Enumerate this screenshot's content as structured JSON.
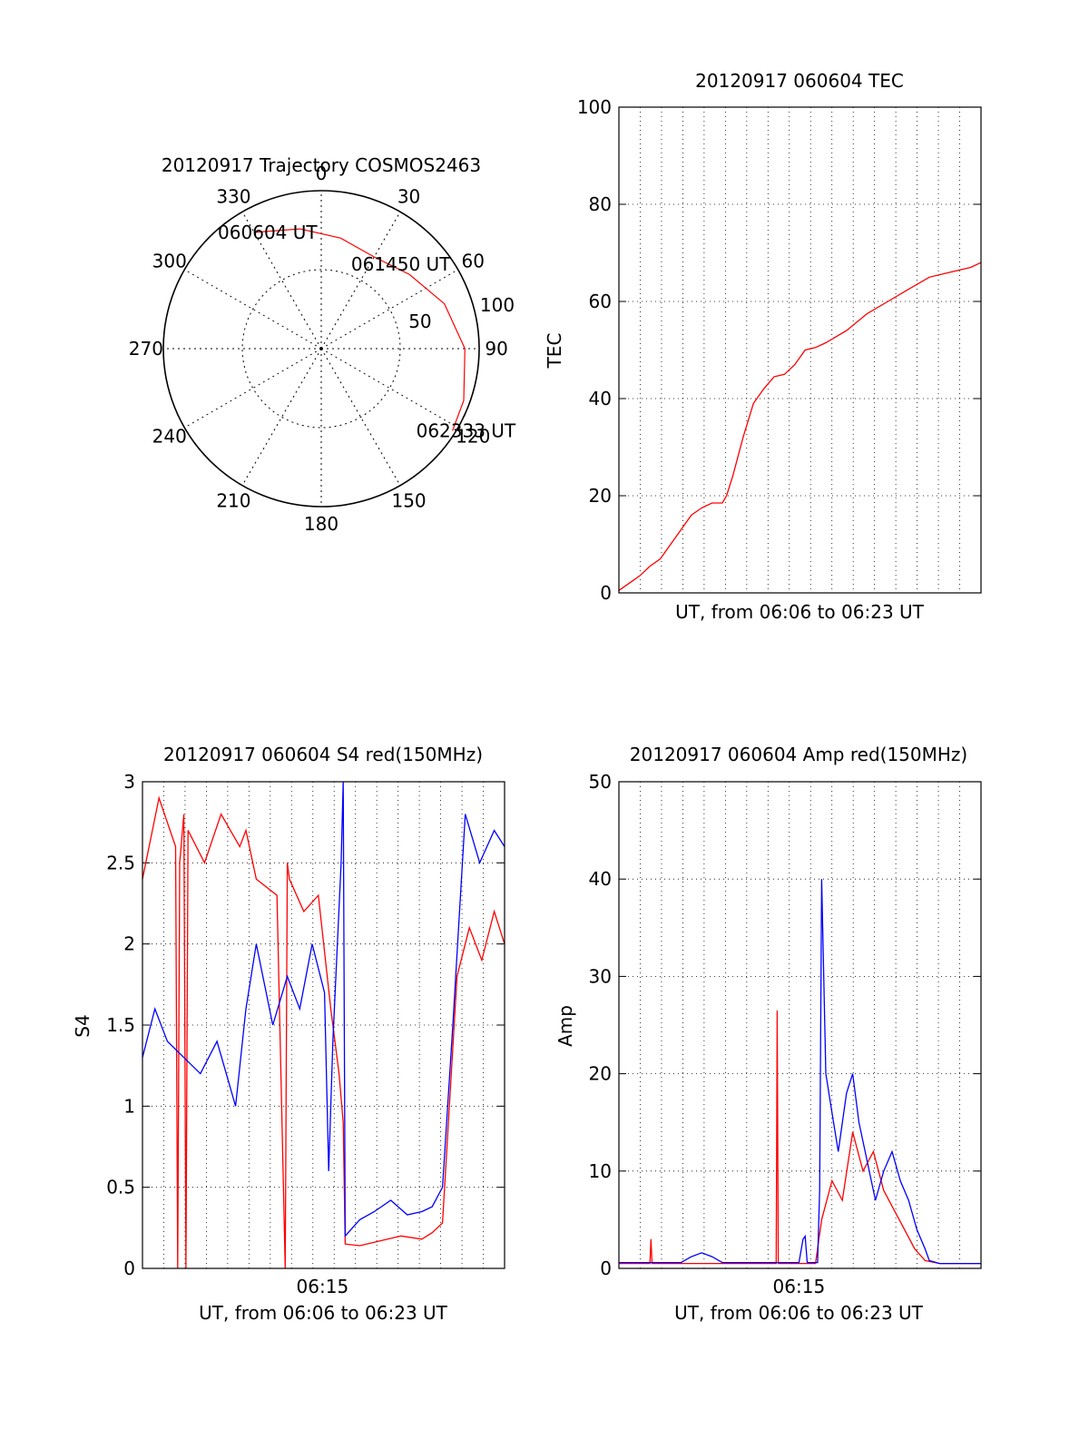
{
  "chart_data": [
    {
      "type": "polar",
      "title": "20120917 Trajectory COSMOS2463",
      "azimuth_labels": [
        "0",
        "30",
        "60",
        "90",
        "120",
        "150",
        "180",
        "210",
        "240",
        "270",
        "300",
        "330"
      ],
      "radial_labels": [
        "50",
        "100"
      ],
      "radial_ticks": [
        50,
        100
      ],
      "grid": true,
      "series": [
        {
          "color": "#ff0000",
          "points": [
            {
              "az": 330,
              "r": 85
            },
            {
              "az": 350,
              "r": 77
            },
            {
              "az": 10,
              "r": 71
            },
            {
              "az": 30,
              "r": 67
            },
            {
              "az": 50,
              "r": 73
            },
            {
              "az": 70,
              "r": 83
            },
            {
              "az": 90,
              "r": 91
            },
            {
              "az": 110,
              "r": 96
            },
            {
              "az": 122,
              "r": 98
            }
          ]
        }
      ],
      "annotations": [
        {
          "text": "060604 UT",
          "az": 330,
          "r": 85
        },
        {
          "text": "061450 UT",
          "az": 38,
          "r": 68
        },
        {
          "text": "062333 UT",
          "az": 122,
          "r": 98
        }
      ]
    },
    {
      "type": "line",
      "title": "20120917 060604 TEC",
      "xlabel": "UT, from 06:06 to 06:23 UT",
      "ylabel": "TEC",
      "xlim": [
        0,
        17.5
      ],
      "ylim": [
        0,
        100
      ],
      "yticks": [
        "0",
        "20",
        "40",
        "60",
        "80",
        "100"
      ],
      "grid": true,
      "series": [
        {
          "color": "#ff0000",
          "x": [
            0,
            0.5,
            1.0,
            1.5,
            2.0,
            2.5,
            3.0,
            3.5,
            4.0,
            4.5,
            5.0,
            5.2,
            5.5,
            6.0,
            6.5,
            7.0,
            7.5,
            8.0,
            8.5,
            9.0,
            9.5,
            10.0,
            11.0,
            12.0,
            13.0,
            14.0,
            15.0,
            16.0,
            17.0,
            17.5
          ],
          "y": [
            0.5,
            2,
            3.5,
            5.5,
            7,
            10,
            13,
            16,
            17.5,
            18.5,
            18.5,
            20,
            24,
            32,
            39,
            42,
            44.5,
            45,
            47,
            50,
            50.5,
            51.5,
            54,
            57.5,
            60,
            62.5,
            65,
            66,
            67,
            68
          ]
        }
      ]
    },
    {
      "type": "line",
      "title": "20120917 060604 S4 red(150MHz)",
      "xlabel": "UT, from 06:06 to 06:23 UT",
      "ylabel": "S4",
      "xlim": [
        0,
        17.5
      ],
      "ylim": [
        0,
        3
      ],
      "yticks": [
        "0",
        "0.5",
        "1",
        "1.5",
        "2",
        "2.5",
        "3"
      ],
      "xticks": [
        {
          "x": 8.7,
          "label": "06:15"
        }
      ],
      "grid": true,
      "series": [
        {
          "color": "#ff0000",
          "x": [
            0,
            0.8,
            1.6,
            1.7,
            1.8,
            2.0,
            2.1,
            2.2,
            3.0,
            3.8,
            4.7,
            5.0,
            5.5,
            6.5,
            6.9,
            7.0,
            7.1,
            7.8,
            8.5,
            9.1,
            9.5,
            9.7,
            9.8,
            10.5,
            11.5,
            12.5,
            13.5,
            14.0,
            14.5,
            15.2,
            15.8,
            16.4,
            17.0,
            17.5
          ],
          "y": [
            2.4,
            2.9,
            2.6,
            0,
            2.5,
            2.8,
            0,
            2.7,
            2.5,
            2.8,
            2.6,
            2.7,
            2.4,
            2.3,
            0,
            2.5,
            2.4,
            2.2,
            2.3,
            1.6,
            1.2,
            0.9,
            0.15,
            0.14,
            0.17,
            0.2,
            0.18,
            0.22,
            0.28,
            1.8,
            2.1,
            1.9,
            2.2,
            2.0
          ]
        },
        {
          "color": "#0000ff",
          "x": [
            0,
            0.6,
            1.2,
            2.0,
            2.8,
            3.6,
            4.5,
            5.0,
            5.5,
            6.3,
            7.0,
            7.6,
            8.2,
            8.8,
            9.0,
            9.2,
            9.6,
            9.7,
            9.8,
            10.5,
            11.2,
            12.0,
            12.8,
            13.5,
            14.0,
            14.5,
            15.0,
            15.6,
            16.3,
            17.0,
            17.5
          ],
          "y": [
            1.3,
            1.6,
            1.4,
            1.3,
            1.2,
            1.4,
            1.0,
            1.6,
            2.0,
            1.5,
            1.8,
            1.6,
            2.0,
            1.7,
            0.6,
            1.4,
            2.5,
            3.0,
            0.2,
            0.3,
            0.35,
            0.42,
            0.33,
            0.35,
            0.38,
            0.5,
            1.5,
            2.8,
            2.5,
            2.7,
            2.6
          ]
        }
      ]
    },
    {
      "type": "line",
      "title": "20120917 060604 Amp red(150MHz)",
      "xlabel": "UT, from 06:06 to 06:23 UT",
      "ylabel": "Amp",
      "xlim": [
        0,
        17.5
      ],
      "ylim": [
        0,
        50
      ],
      "yticks": [
        "0",
        "10",
        "20",
        "30",
        "40",
        "50"
      ],
      "xticks": [
        {
          "x": 8.7,
          "label": "06:15"
        }
      ],
      "grid": true,
      "series": [
        {
          "color": "#ff0000",
          "x": [
            0,
            1.5,
            1.55,
            1.6,
            7.6,
            7.65,
            7.7,
            9.5,
            9.8,
            10.3,
            10.8,
            11.3,
            11.8,
            12.3,
            12.8,
            13.3,
            13.8,
            14.3,
            14.8,
            15.5,
            17.5
          ],
          "y": [
            0.5,
            0.5,
            3,
            0.5,
            0.5,
            26.5,
            0.5,
            0.5,
            5,
            9,
            7,
            14,
            10,
            12,
            8,
            6,
            4,
            2,
            0.8,
            0.5,
            0.5
          ]
        },
        {
          "color": "#0000ff",
          "x": [
            0,
            3.0,
            3.5,
            4.0,
            4.5,
            5.0,
            8.7,
            8.9,
            9.0,
            9.1,
            9.6,
            9.7,
            9.8,
            10.0,
            10.3,
            10.6,
            11.0,
            11.3,
            11.6,
            12.0,
            12.4,
            12.8,
            13.2,
            13.6,
            14.0,
            14.4,
            14.8,
            15.0,
            15.5,
            17.5
          ],
          "y": [
            0.6,
            0.6,
            1.2,
            1.6,
            1.2,
            0.6,
            0.6,
            3,
            3.3,
            0.6,
            0.6,
            8,
            40,
            20,
            16,
            12,
            18,
            20,
            15,
            11,
            7,
            10,
            12,
            9,
            7,
            4,
            2,
            0.8,
            0.5,
            0.5
          ]
        }
      ]
    }
  ]
}
